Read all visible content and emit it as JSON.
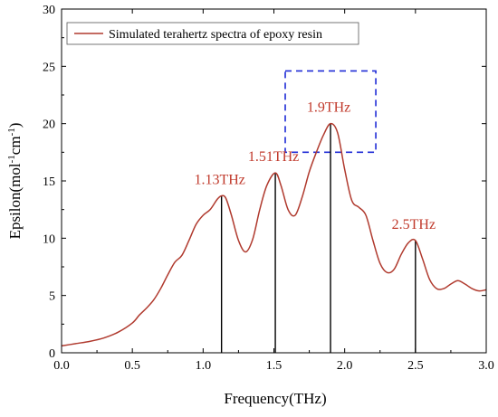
{
  "chart_data": {
    "type": "line",
    "xlabel": "Frequency(THz)",
    "ylabel": {
      "base": "Epsilon(mol",
      "sup1": "-1",
      "mid": "cm",
      "sup2": "-1",
      "end": ")"
    },
    "xlim": [
      0.0,
      3.0
    ],
    "ylim": [
      0,
      30
    ],
    "xticks": [
      "0.0",
      "0.5",
      "1.0",
      "1.5",
      "2.0",
      "2.5",
      "3.0"
    ],
    "yticks": [
      "0",
      "5",
      "10",
      "15",
      "20",
      "25",
      "30"
    ],
    "legend": {
      "position": "top-left",
      "entry": "Simulated terahertz spectra of epoxy resin"
    },
    "colors": {
      "line": "#b03a2e",
      "label": "#c0392b",
      "highlight": "#1f2bd6"
    },
    "series": [
      {
        "name": "Simulated terahertz spectra of epoxy resin",
        "x": [
          0.0,
          0.1,
          0.2,
          0.3,
          0.4,
          0.5,
          0.55,
          0.6,
          0.65,
          0.7,
          0.75,
          0.8,
          0.85,
          0.9,
          0.95,
          1.0,
          1.05,
          1.1,
          1.13,
          1.16,
          1.2,
          1.25,
          1.3,
          1.35,
          1.4,
          1.45,
          1.51,
          1.55,
          1.6,
          1.65,
          1.7,
          1.75,
          1.8,
          1.85,
          1.9,
          1.95,
          2.0,
          2.05,
          2.1,
          2.15,
          2.2,
          2.25,
          2.3,
          2.35,
          2.4,
          2.45,
          2.5,
          2.55,
          2.6,
          2.65,
          2.7,
          2.75,
          2.8,
          2.85,
          2.9,
          2.95,
          3.0
        ],
        "y": [
          0.6,
          0.8,
          1.0,
          1.3,
          1.8,
          2.6,
          3.3,
          3.9,
          4.6,
          5.6,
          6.8,
          7.9,
          8.5,
          9.8,
          11.2,
          12.0,
          12.5,
          13.4,
          13.7,
          13.5,
          12.0,
          9.8,
          8.8,
          9.9,
          12.5,
          14.6,
          15.7,
          14.6,
          12.5,
          12.0,
          13.6,
          15.8,
          17.5,
          19.0,
          20.0,
          19.2,
          16.0,
          13.3,
          12.7,
          12.0,
          9.8,
          7.8,
          7.0,
          7.3,
          8.6,
          9.6,
          9.8,
          8.2,
          6.4,
          5.6,
          5.6,
          6.0,
          6.3,
          6.0,
          5.6,
          5.4,
          5.5
        ]
      }
    ],
    "peaks": [
      {
        "x": 1.13,
        "y": 13.7,
        "label": "1.13THz"
      },
      {
        "x": 1.51,
        "y": 15.7,
        "label": "1.51THz"
      },
      {
        "x": 1.9,
        "y": 20.0,
        "label": "1.9THz"
      },
      {
        "x": 2.5,
        "y": 9.8,
        "label": "2.5THz"
      }
    ],
    "highlight_box": {
      "x0": 1.58,
      "x1": 2.22,
      "y0": 17.5,
      "y1": 24.6
    }
  }
}
